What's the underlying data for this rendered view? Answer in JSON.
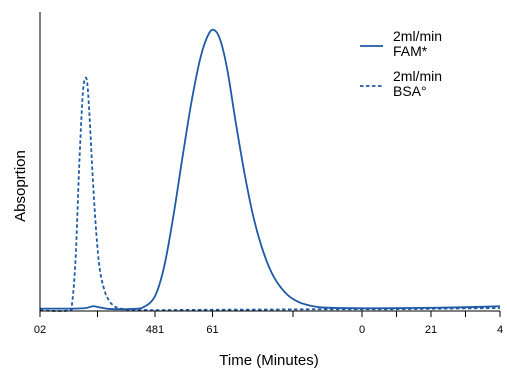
{
  "chart_data": {
    "type": "line",
    "title": "",
    "xlabel": "Time (Minutes)",
    "ylabel": "Absoprtion",
    "xlim": [
      0,
      40
    ],
    "ylim": [
      0,
      100
    ],
    "x_ticks": [
      {
        "value": 0,
        "label": "02"
      },
      {
        "value": 10,
        "label": "481"
      },
      {
        "value": 15,
        "label": "61"
      },
      {
        "value": 28,
        "label": "0"
      },
      {
        "value": 34,
        "label": "21"
      },
      {
        "value": 40,
        "label": "4"
      }
    ],
    "x_minor_ticks": [
      5,
      22,
      31,
      37
    ],
    "legend_position": "top-right",
    "color": "#1f5aa6",
    "series": [
      {
        "name_lines": [
          "2ml/min",
          "FAM*"
        ],
        "style": "solid",
        "x": [
          0,
          3,
          4,
          4.6,
          5.2,
          6,
          8,
          9,
          10,
          10.8,
          11.6,
          12.4,
          13.2,
          14,
          14.7,
          15.2,
          15.7,
          16.3,
          17,
          17.8,
          18.6,
          19.5,
          20.4,
          21.5,
          22.5,
          23.5,
          24.5,
          26,
          28,
          32,
          36,
          40
        ],
        "y": [
          0.8,
          0.8,
          1.0,
          1.6,
          1.2,
          0.7,
          0.7,
          1.3,
          5,
          15,
          32,
          52,
          71,
          86,
          93.5,
          94.5,
          91,
          81,
          64,
          46,
          31,
          19,
          11,
          5.5,
          3,
          1.8,
          1.2,
          1.0,
          0.9,
          1.0,
          1.2,
          1.6
        ]
      },
      {
        "name_lines": [
          "2ml/min",
          "BSA°"
        ],
        "style": "dashed",
        "x": [
          0,
          2.5,
          2.8,
          3.1,
          3.4,
          3.7,
          3.9,
          4.1,
          4.3,
          4.6,
          4.9,
          5.2,
          5.6,
          6.0,
          6.4,
          6.8,
          7.3,
          8,
          10,
          14,
          20,
          25,
          30,
          35,
          40
        ],
        "y": [
          0.2,
          0.2,
          3,
          18,
          48,
          72,
          78,
          77,
          66,
          44,
          26,
          14,
          7,
          3.5,
          1.8,
          1.0,
          0.6,
          0.4,
          0.3,
          0.4,
          0.5,
          0.6,
          0.6,
          0.8,
          1.0
        ]
      }
    ]
  }
}
